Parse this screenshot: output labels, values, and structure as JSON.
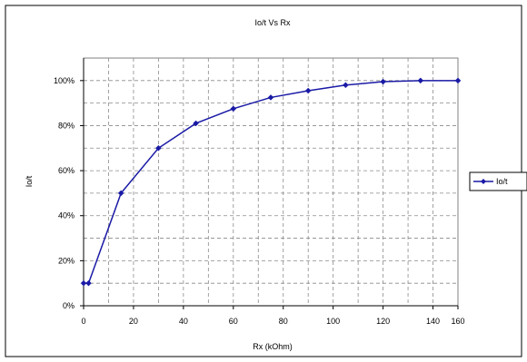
{
  "chart_data": {
    "type": "line",
    "title": "Io/t Vs Rx",
    "xlabel": "Rx (kOhm)",
    "ylabel": "Io/t",
    "x": [
      0,
      2,
      15,
      30,
      45,
      60,
      75,
      90,
      105,
      120,
      135,
      150
    ],
    "series": [
      {
        "name": "Io/t",
        "values": [
          0.1,
          0.1,
          0.5,
          0.7,
          0.81,
          0.875,
          0.925,
          0.955,
          0.98,
          0.995,
          1.0,
          1.0
        ]
      }
    ],
    "xlim": [
      0,
      150
    ],
    "ylim": [
      0,
      1.1
    ],
    "x_ticks": [
      0,
      20,
      40,
      60,
      80,
      100,
      120,
      140,
      160
    ],
    "x_tick_labels": [
      "0",
      "20",
      "40",
      "60",
      "80",
      "100",
      "120",
      "140",
      "160"
    ],
    "y_ticks": [
      0,
      0.2,
      0.4,
      0.6,
      0.8,
      1.0
    ],
    "y_tick_labels": [
      "0%",
      "20%",
      "40%",
      "60%",
      "80%",
      "100%"
    ],
    "grid": true,
    "legend_position": "right",
    "colors": {
      "series": "#1a1aa6",
      "plot_bg": "#ffffff",
      "grid": "#8a8a8a",
      "axis": "#000000"
    }
  }
}
